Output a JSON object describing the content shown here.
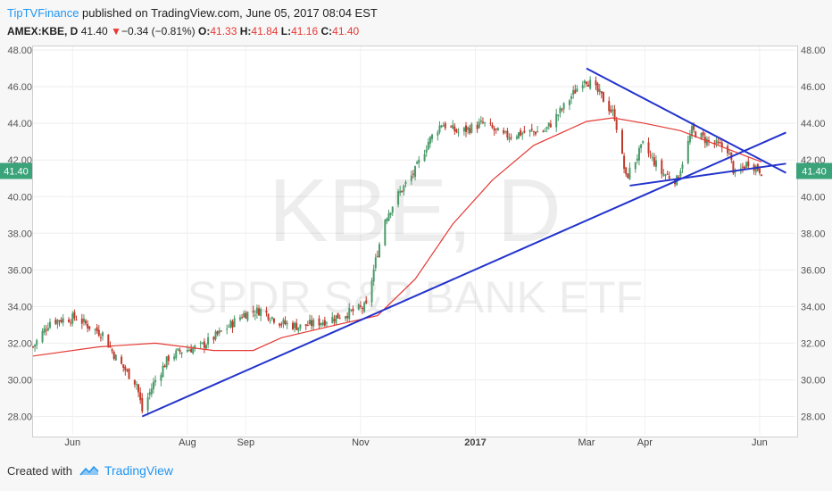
{
  "header": {
    "author": "TipTVFinance",
    "published": " published on TradingView.com, June 05, 2017 08:04 EST",
    "symbol": "AMEX:KBE, D",
    "last": "41.40",
    "arrow": "▼",
    "change": "−0.34 (−0.81%)",
    "o_label": "O:",
    "o": "41.33",
    "h_label": "H:",
    "h": "41.84",
    "l_label": "L:",
    "l": "41.16",
    "c_label": "C:",
    "c": "41.40"
  },
  "watermark": {
    "ticker": "KBE, D",
    "name": "SPDR S&P BANK ETF"
  },
  "footer": {
    "created_with": "Created with",
    "brand": "TradingView"
  },
  "colors": {
    "up": "#4a9a6a",
    "down": "#c0392b",
    "ma": "#e53935",
    "trend": "#2233cc",
    "price_tag": "#3aa37a"
  },
  "chart_data": {
    "type": "candlestick",
    "title": "",
    "ylim": [
      27.0,
      48.2
    ],
    "yticks": [
      "28.00",
      "30.00",
      "32.00",
      "34.00",
      "36.00",
      "38.00",
      "40.00",
      "42.00",
      "44.00",
      "46.00",
      "48.00"
    ],
    "xticks": [
      {
        "label": "Jun",
        "date": "2016-06-01"
      },
      {
        "label": "Aug",
        "date": "2016-08-01"
      },
      {
        "label": "Sep",
        "date": "2016-09-01"
      },
      {
        "label": "Nov",
        "date": "2016-11-01"
      },
      {
        "label": "2017",
        "date": "2017-01-01"
      },
      {
        "label": "Mar",
        "date": "2017-03-01"
      },
      {
        "label": "Apr",
        "date": "2017-04-01"
      },
      {
        "label": "Jun",
        "date": "2017-06-01"
      }
    ],
    "last_price": "41.40",
    "price_path": [
      [
        "2016-05-11",
        31.8
      ],
      [
        "2016-05-20",
        33.2
      ],
      [
        "2016-06-03",
        33.4
      ],
      [
        "2016-06-10",
        32.9
      ],
      [
        "2016-06-17",
        32.5
      ],
      [
        "2016-06-24",
        31.2
      ],
      [
        "2016-06-30",
        30.4
      ],
      [
        "2016-07-05",
        29.8
      ],
      [
        "2016-07-08",
        28.3
      ],
      [
        "2016-07-14",
        29.8
      ],
      [
        "2016-07-22",
        31.2
      ],
      [
        "2016-07-29",
        31.6
      ],
      [
        "2016-08-08",
        31.8
      ],
      [
        "2016-08-19",
        32.6
      ],
      [
        "2016-08-31",
        33.6
      ],
      [
        "2016-09-09",
        33.8
      ],
      [
        "2016-09-20",
        33.1
      ],
      [
        "2016-09-30",
        32.9
      ],
      [
        "2016-10-12",
        33.2
      ],
      [
        "2016-10-24",
        33.6
      ],
      [
        "2016-11-04",
        34.0
      ],
      [
        "2016-11-09",
        36.5
      ],
      [
        "2016-11-14",
        38.8
      ],
      [
        "2016-11-21",
        40.1
      ],
      [
        "2016-11-30",
        41.4
      ],
      [
        "2016-12-07",
        43.0
      ],
      [
        "2016-12-14",
        44.0
      ],
      [
        "2016-12-23",
        43.5
      ],
      [
        "2017-01-05",
        44.0
      ],
      [
        "2017-01-16",
        43.3
      ],
      [
        "2017-01-27",
        43.5
      ],
      [
        "2017-02-07",
        43.6
      ],
      [
        "2017-02-17",
        44.9
      ],
      [
        "2017-02-28",
        46.5
      ],
      [
        "2017-03-08",
        45.6
      ],
      [
        "2017-03-16",
        44.4
      ],
      [
        "2017-03-22",
        41.0
      ],
      [
        "2017-03-31",
        42.8
      ],
      [
        "2017-04-10",
        41.3
      ],
      [
        "2017-04-18",
        40.9
      ],
      [
        "2017-04-26",
        43.6
      ],
      [
        "2017-05-05",
        43.0
      ],
      [
        "2017-05-15",
        42.6
      ],
      [
        "2017-05-19",
        41.1
      ],
      [
        "2017-05-26",
        41.9
      ],
      [
        "2017-06-02",
        41.4
      ]
    ],
    "ma_path": [
      [
        "2016-05-11",
        31.3
      ],
      [
        "2016-06-15",
        31.8
      ],
      [
        "2016-07-15",
        32.0
      ],
      [
        "2016-08-15",
        31.6
      ],
      [
        "2016-09-05",
        31.6
      ],
      [
        "2016-09-20",
        32.3
      ],
      [
        "2016-10-15",
        32.9
      ],
      [
        "2016-11-10",
        33.5
      ],
      [
        "2016-11-30",
        35.5
      ],
      [
        "2016-12-20",
        38.5
      ],
      [
        "2017-01-10",
        40.9
      ],
      [
        "2017-02-01",
        42.8
      ],
      [
        "2017-03-01",
        44.1
      ],
      [
        "2017-03-15",
        44.3
      ],
      [
        "2017-04-01",
        44.0
      ],
      [
        "2017-04-20",
        43.6
      ],
      [
        "2017-05-10",
        42.8
      ],
      [
        "2017-05-25",
        42.2
      ],
      [
        "2017-06-02",
        41.9
      ]
    ],
    "trendlines": [
      {
        "from": [
          "2016-07-08",
          28.0
        ],
        "to": [
          "2017-06-15",
          43.5
        ]
      },
      {
        "from": [
          "2017-03-01",
          47.0
        ],
        "to": [
          "2017-06-15",
          41.3
        ]
      },
      {
        "from": [
          "2017-03-24",
          40.6
        ],
        "to": [
          "2017-06-15",
          41.8
        ]
      }
    ]
  }
}
